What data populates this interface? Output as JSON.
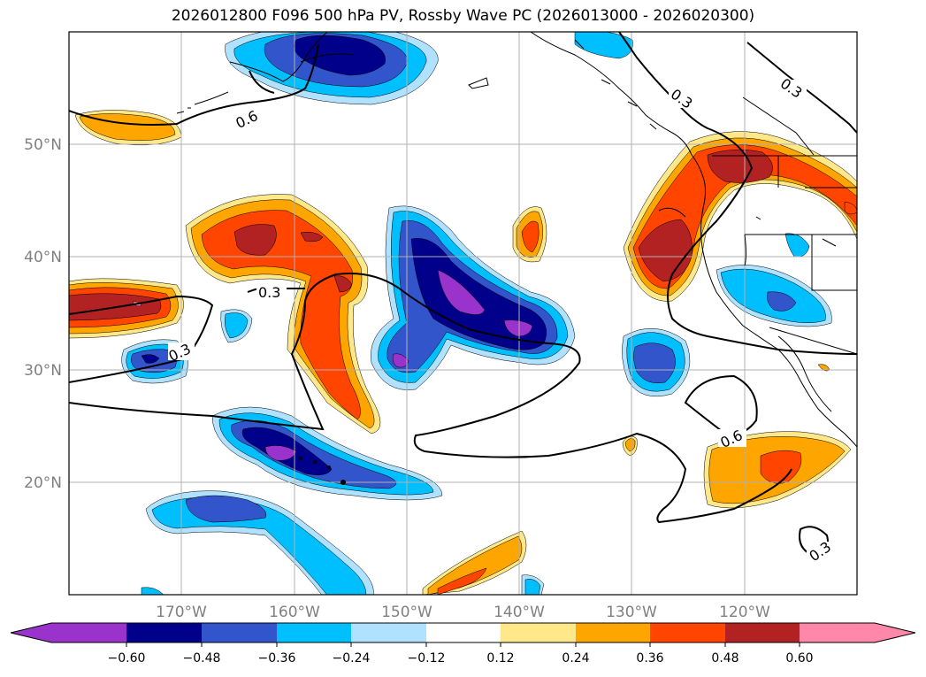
{
  "title": "2026012800 F096 500 hPa PV, Rossby Wave PC (2026013000 - 2026020300)",
  "colors": {
    "neg_0_60": "#9933cc",
    "neg_0_48": "#00008b",
    "neg_0_36": "#3355cc",
    "neg_0_24": "#00bfff",
    "neg_0_12": "#b0e2ff",
    "zero": "#ffffff",
    "pos_0_12": "#ffe88a",
    "pos_0_24": "#ffa500",
    "pos_0_36": "#ff4500",
    "pos_0_48": "#b22222",
    "pos_0_60": "#ff88aa"
  },
  "map": {
    "lon_ticks": [
      "170°W",
      "160°W",
      "150°W",
      "140°W",
      "130°W",
      "120°W"
    ],
    "lat_ticks": [
      "50°N",
      "40°N",
      "30°N",
      "20°N"
    ],
    "contour_labels": [
      "0.6",
      "0.3",
      "0.3",
      "0.3",
      "0.3",
      "0.6",
      "0.3"
    ]
  },
  "colorbar": {
    "tick_labels": [
      "−0.60",
      "−0.48",
      "−0.36",
      "−0.24",
      "−0.12",
      "0.12",
      "0.24",
      "0.36",
      "0.48",
      "0.60"
    ]
  }
}
